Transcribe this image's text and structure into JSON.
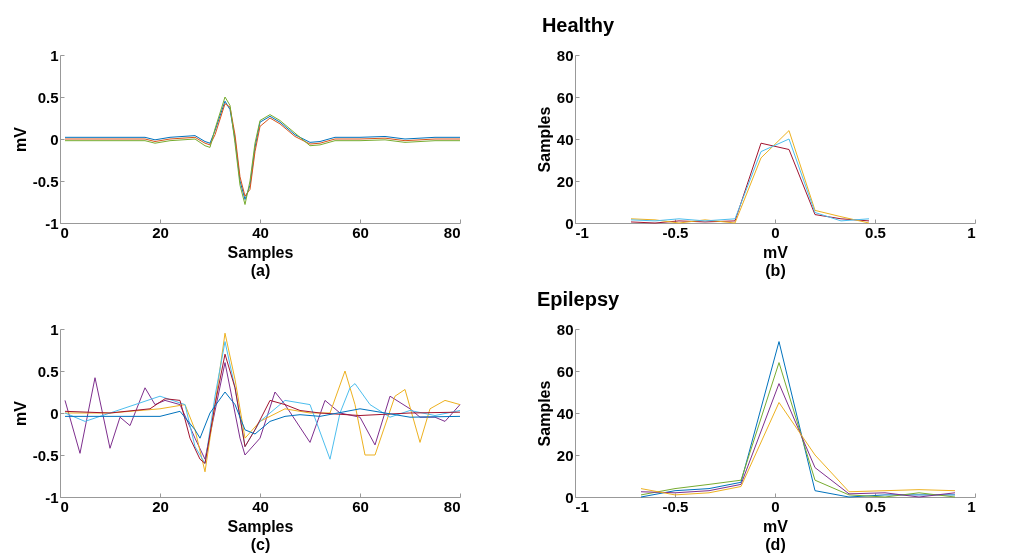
{
  "chart_data": [
    {
      "type": "other",
      "title": "Healthy"
    },
    {
      "type": "line",
      "xlabel": "Samples",
      "ylabel": "mV",
      "annotations": [
        "(a)"
      ],
      "xlim": [
        0,
        80
      ],
      "xticks": [
        0,
        20,
        40,
        60,
        80
      ],
      "ylim": [
        -1,
        1
      ],
      "yticks": [
        -1,
        -0.5,
        0,
        0.5,
        1
      ],
      "series": [
        {
          "color": "#0072bd",
          "x": [
            1,
            10,
            17,
            19,
            22,
            27,
            29,
            30,
            31,
            33,
            34,
            35,
            36,
            37,
            38,
            39,
            40,
            42,
            44,
            47,
            50,
            52,
            55,
            60,
            65,
            69,
            75,
            80
          ],
          "values": [
            0.02,
            0.02,
            0.02,
            -0.01,
            0.02,
            0.04,
            -0.03,
            -0.05,
            0.1,
            0.45,
            0.35,
            0,
            -0.5,
            -0.72,
            -0.55,
            -0.1,
            0.2,
            0.27,
            0.2,
            0.05,
            -0.04,
            -0.03,
            0.02,
            0.02,
            0.03,
            0,
            0.02,
            0.02
          ]
        },
        {
          "color": "#d95319",
          "x": [
            1,
            10,
            17,
            19,
            22,
            27,
            29,
            30,
            31,
            33,
            34,
            35,
            36,
            37,
            38,
            39,
            40,
            42,
            44,
            47,
            50,
            52,
            55,
            60,
            65,
            69,
            75,
            80
          ],
          "values": [
            0,
            0,
            0,
            -0.03,
            0,
            0.02,
            -0.05,
            -0.07,
            0.05,
            0.42,
            0.38,
            0.05,
            -0.45,
            -0.68,
            -0.6,
            -0.15,
            0.15,
            0.25,
            0.18,
            0.03,
            -0.06,
            -0.05,
            0,
            0,
            0.01,
            -0.02,
            0,
            0
          ]
        },
        {
          "color": "#77ac30",
          "x": [
            1,
            10,
            17,
            19,
            22,
            27,
            29,
            30,
            31,
            33,
            34,
            35,
            36,
            37,
            38,
            39,
            40,
            42,
            44,
            47,
            50,
            52,
            55,
            60,
            65,
            69,
            75,
            80
          ],
          "values": [
            -0.02,
            -0.02,
            -0.02,
            -0.05,
            -0.02,
            0,
            -0.08,
            -0.1,
            0.12,
            0.5,
            0.4,
            -0.05,
            -0.55,
            -0.78,
            -0.5,
            -0.05,
            0.22,
            0.29,
            0.22,
            0.07,
            -0.08,
            -0.07,
            -0.02,
            -0.02,
            -0.01,
            -0.04,
            -0.02,
            -0.02
          ]
        }
      ]
    },
    {
      "type": "line",
      "xlabel": "mV",
      "ylabel": "Samples",
      "annotations": [
        "(b)"
      ],
      "xlim": [
        -1,
        1
      ],
      "xticks": [
        -1,
        -0.5,
        0,
        0.5,
        1
      ],
      "ylim": [
        0,
        80
      ],
      "yticks": [
        0,
        20,
        40,
        60,
        80
      ],
      "series": [
        {
          "color": "#a2142f",
          "x": [
            -0.72,
            -0.6,
            -0.48,
            -0.35,
            -0.2,
            -0.07,
            0.07,
            0.2,
            0.33,
            0.47
          ],
          "values": [
            0.5,
            0,
            1,
            0.5,
            1,
            38,
            35,
            4,
            2,
            1
          ]
        },
        {
          "color": "#edb120",
          "x": [
            -0.72,
            -0.6,
            -0.48,
            -0.35,
            -0.2,
            -0.07,
            0.07,
            0.2,
            0.33,
            0.47
          ],
          "values": [
            2,
            1.5,
            0,
            1.5,
            0,
            31,
            44,
            6,
            3,
            0
          ]
        },
        {
          "color": "#4dbeee",
          "x": [
            -0.72,
            -0.6,
            -0.48,
            -0.35,
            -0.2,
            -0.07,
            0.07,
            0.2,
            0.33,
            0.47
          ],
          "values": [
            1.5,
            1,
            2,
            1,
            2,
            34,
            40,
            5,
            1,
            2
          ]
        }
      ]
    },
    {
      "type": "other",
      "title": "Epilepsy"
    },
    {
      "type": "line",
      "xlabel": "Samples",
      "ylabel": "mV",
      "annotations": [
        "(c)"
      ],
      "xlim": [
        0,
        80
      ],
      "xticks": [
        0,
        20,
        40,
        60,
        80
      ],
      "ylim": [
        -1,
        1
      ],
      "yticks": [
        -1,
        -0.5,
        0,
        0.5,
        1
      ],
      "series": [
        {
          "color": "#7e2f8e",
          "x": [
            1,
            4,
            7,
            10,
            12,
            14,
            17,
            19,
            21,
            24,
            27,
            29,
            33,
            36,
            37,
            40,
            43,
            45,
            50,
            53,
            56,
            60,
            63,
            66,
            70,
            72,
            75,
            77,
            80
          ],
          "values": [
            0.15,
            -0.48,
            0.42,
            -0.42,
            -0.05,
            -0.15,
            0.3,
            0.1,
            0.15,
            0.1,
            -0.3,
            -0.55,
            0.6,
            -0.3,
            -0.5,
            -0.3,
            0.25,
            0.1,
            -0.35,
            0.15,
            0,
            -0.05,
            -0.38,
            0.2,
            0.05,
            -0.05,
            -0.05,
            -0.1,
            0.1
          ]
        },
        {
          "color": "#edb120",
          "x": [
            1,
            10,
            20,
            25,
            27,
            29,
            31,
            33,
            35,
            37,
            40,
            45,
            50,
            54,
            57,
            59,
            61,
            63,
            67,
            69,
            72,
            74,
            77,
            80
          ],
          "values": [
            0,
            0,
            0.05,
            0.1,
            -0.2,
            -0.7,
            0.1,
            0.95,
            0.4,
            -0.3,
            -0.1,
            0.05,
            0,
            0,
            0.5,
            0.1,
            -0.5,
            -0.5,
            0.2,
            0.28,
            -0.35,
            0.05,
            0.15,
            0.1
          ]
        },
        {
          "color": "#4dbeee",
          "x": [
            1,
            5,
            10,
            20,
            25,
            27,
            29,
            31,
            33,
            35,
            37,
            40,
            45,
            50,
            54,
            56,
            58,
            59,
            62,
            66,
            70,
            75,
            80
          ],
          "values": [
            0,
            -0.1,
            0,
            0.2,
            0.1,
            -0.4,
            -0.6,
            0.2,
            0.85,
            0.3,
            -0.4,
            -0.1,
            0.15,
            0.1,
            -0.55,
            0,
            0.3,
            0.35,
            0.1,
            -0.05,
            0.03,
            -0.03,
            0.03
          ]
        },
        {
          "color": "#a2142f",
          "x": [
            1,
            10,
            18,
            21,
            24,
            26,
            28,
            29,
            31,
            33,
            35,
            37,
            39,
            42,
            45,
            48,
            52,
            60,
            70,
            80
          ],
          "values": [
            0.02,
            0,
            0.05,
            0.17,
            0.15,
            -0.3,
            -0.55,
            -0.6,
            0.1,
            0.7,
            0.3,
            -0.4,
            -0.2,
            0.15,
            0.1,
            0.03,
            0,
            -0.03,
            0,
            0.01
          ]
        },
        {
          "color": "#0072bd",
          "x": [
            1,
            10,
            20,
            24,
            27,
            28,
            30,
            33,
            35,
            37,
            39,
            42,
            45,
            48,
            52,
            60,
            70,
            80
          ],
          "values": [
            -0.04,
            -0.04,
            -0.04,
            0.02,
            -0.2,
            -0.3,
            0,
            0.25,
            0.1,
            -0.2,
            -0.25,
            -0.1,
            -0.04,
            -0.02,
            -0.04,
            0.05,
            -0.05,
            -0.04
          ]
        }
      ]
    },
    {
      "type": "line",
      "xlabel": "mV",
      "ylabel": "Samples",
      "annotations": [
        "(d)"
      ],
      "xlim": [
        -1,
        1
      ],
      "xticks": [
        -1,
        -0.5,
        0,
        0.5,
        1
      ],
      "ylim": [
        0,
        80
      ],
      "yticks": [
        0,
        20,
        40,
        60,
        80
      ],
      "series": [
        {
          "color": "#0072bd",
          "x": [
            -0.67,
            -0.5,
            -0.33,
            -0.17,
            0.02,
            0.2,
            0.37,
            0.55,
            0.72,
            0.9
          ],
          "values": [
            0,
            3,
            4,
            7,
            74,
            3,
            0,
            1,
            1,
            1
          ]
        },
        {
          "color": "#77ac30",
          "x": [
            -0.67,
            -0.5,
            -0.33,
            -0.17,
            0.02,
            0.2,
            0.37,
            0.55,
            0.72,
            0.9
          ],
          "values": [
            1,
            4,
            6,
            8,
            64,
            8,
            1,
            0,
            2,
            0
          ]
        },
        {
          "color": "#7e2f8e",
          "x": [
            -0.67,
            -0.5,
            -0.33,
            -0.17,
            0.02,
            0.2,
            0.37,
            0.55,
            0.72,
            0.9
          ],
          "values": [
            2.5,
            2,
            3,
            6,
            54,
            14,
            1.5,
            2,
            0,
            2
          ]
        },
        {
          "color": "#edb120",
          "x": [
            -0.67,
            -0.5,
            -0.33,
            -0.17,
            0.02,
            0.2,
            0.37,
            0.55,
            0.72,
            0.9
          ],
          "values": [
            4,
            1,
            2,
            5,
            45,
            20,
            2.5,
            3,
            3.5,
            3
          ]
        }
      ]
    }
  ]
}
